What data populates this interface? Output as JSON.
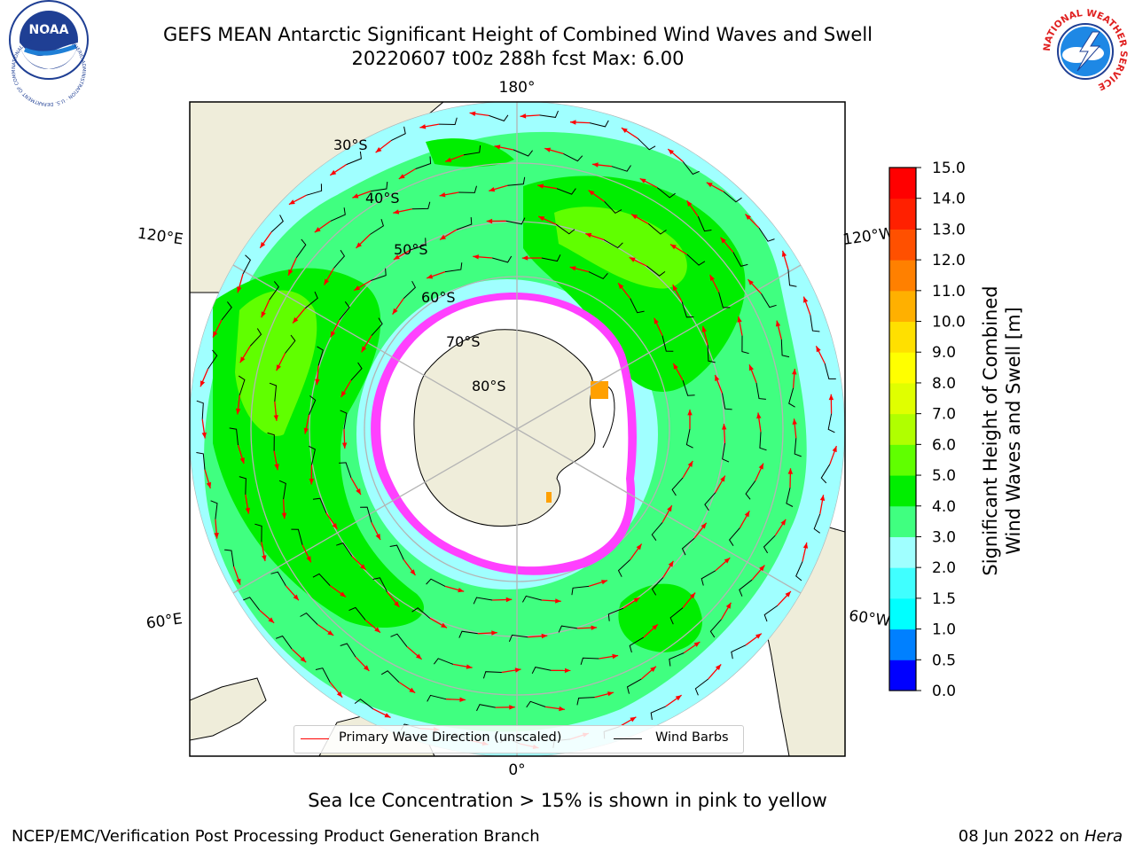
{
  "header": {
    "title_line1": "GEFS MEAN Antarctic Significant Height of Combined Wind Waves and Swell",
    "title_line2": "20220607 t00z 288h fcst   Max: 6.00"
  },
  "logos": {
    "left": {
      "icon": "noaa-logo-icon",
      "text": "NOAA",
      "ring": "NATIONAL OCEANIC AND ATMOSPHERIC ADMINISTRATION · U.S. DEPARTMENT OF COMMERCE"
    },
    "right": {
      "icon": "nws-logo-icon",
      "ring": "NATIONAL WEATHER SERVICE"
    }
  },
  "map": {
    "projection": "south-polar-stereographic",
    "longitude_labels": [
      "180°",
      "120°E",
      "120°W",
      "60°E",
      "60°W",
      "0°"
    ],
    "latitude_labels": [
      "30°S",
      "40°S",
      "50°S",
      "60°S",
      "70°S",
      "80°S"
    ],
    "colors": {
      "land": "#efedda",
      "sea_ice": "#ffffff",
      "coast": "#000000",
      "grid": "#b4b4b4",
      "arrow": "#ff0000",
      "barb": "#000000"
    }
  },
  "legend": {
    "items": [
      {
        "label": "Primary Wave Direction (unscaled)",
        "color": "#ff0000"
      },
      {
        "label": "Wind Barbs",
        "color": "#000000"
      }
    ]
  },
  "colorbar": {
    "label_line1": "Significant Height of Combined",
    "label_line2": "Wind Waves and Swell [m]",
    "ticks": [
      "0.0",
      "0.5",
      "1.0",
      "1.5",
      "2.0",
      "3.0",
      "4.0",
      "5.0",
      "6.0",
      "7.0",
      "8.0",
      "9.0",
      "10.0",
      "11.0",
      "12.0",
      "13.0",
      "14.0",
      "15.0"
    ],
    "colors": [
      "#0000ff",
      "#0080ff",
      "#00ffff",
      "#40ffff",
      "#a0ffff",
      "#40ff80",
      "#00ee00",
      "#60ff00",
      "#b0ff00",
      "#e0ff00",
      "#ffff00",
      "#ffe000",
      "#ffb000",
      "#ff8000",
      "#ff5000",
      "#ff2000",
      "#ff0000"
    ]
  },
  "footer": {
    "note": "Sea Ice Concentration > 15% is shown in pink to yellow",
    "left": "NCEP/EMC/Verification Post Processing Product Generation Branch",
    "date": "08 Jun 2022 on ",
    "host": "Hera"
  }
}
